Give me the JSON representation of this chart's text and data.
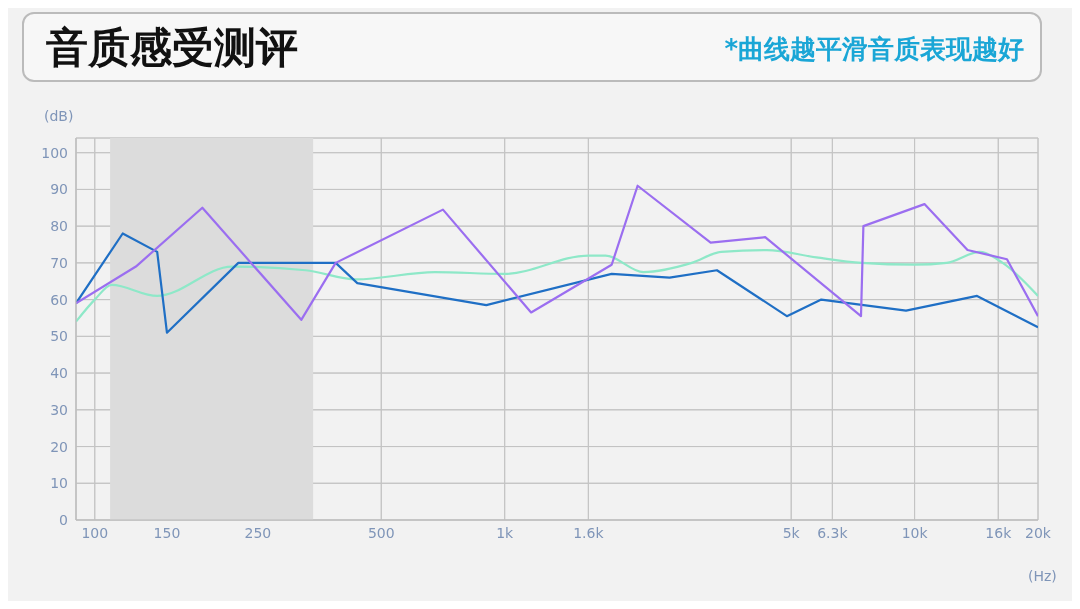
{
  "chart_data": {
    "type": "line",
    "title": "音质感受测评",
    "subtitle": "*曲线越平滑音质表现越好",
    "xlabel": "(Hz)",
    "ylabel": "(dB)",
    "log": "x",
    "xlim": [
      90,
      20000
    ],
    "ylim": [
      0,
      104
    ],
    "xticks": [
      100,
      150,
      250,
      500,
      {
        "value": 1000,
        "label": "1k"
      },
      {
        "value": 1600,
        "label": "1.6k"
      },
      {
        "value": 5000,
        "label": "5k"
      },
      {
        "value": 6300,
        "label": "6.3k"
      },
      {
        "value": 10000,
        "label": "10k"
      },
      {
        "value": 16000,
        "label": "16k"
      },
      {
        "value": 20000,
        "label": "20k"
      }
    ],
    "yticks": [
      0,
      10,
      20,
      30,
      40,
      50,
      60,
      70,
      80,
      90,
      100
    ],
    "grid": true,
    "marker": "none",
    "line_style": "solid",
    "bands": [
      {
        "axis": "x",
        "from": 109,
        "to": 341,
        "color": "#dcdcdc"
      }
    ],
    "series": [
      {
        "color": "#8ee8c8",
        "x": [
          90,
          100,
          110,
          142,
          216,
          327,
          434,
          676,
          1000,
          1600,
          1763,
          2180,
          2860,
          3375,
          4360,
          5760,
          7420,
          10000,
          11970,
          14430,
          16400,
          20000
        ],
        "values": [
          54,
          60,
          64,
          61,
          69,
          68,
          65.5,
          67.5,
          67,
          72,
          72,
          67.5,
          70,
          73,
          73.5,
          71.5,
          70,
          69.5,
          70,
          73,
          70,
          61
        ]
      },
      {
        "color": "#1f6fc5",
        "x": [
          90,
          117,
          142,
          150,
          224,
          387,
          437,
          902,
          1824,
          2525,
          3295,
          4880,
          5920,
          9530,
          14200,
          20000
        ],
        "values": [
          59,
          78,
          73,
          51,
          70,
          70,
          64.5,
          58.5,
          67,
          66,
          68,
          55.5,
          60,
          57,
          61,
          52.5
        ]
      },
      {
        "color": "#9b6ef0",
        "x": [
          90,
          126,
          183,
          319,
          387,
          707,
          1160,
          1824,
          2110,
          3180,
          4320,
          7400,
          7500,
          10570,
          13460,
          16800,
          20000
        ],
        "values": [
          59,
          69,
          85,
          54.5,
          70,
          84.5,
          56.5,
          69.5,
          91,
          75.5,
          77,
          55.5,
          80,
          86,
          73.5,
          71,
          55.5
        ]
      }
    ]
  }
}
